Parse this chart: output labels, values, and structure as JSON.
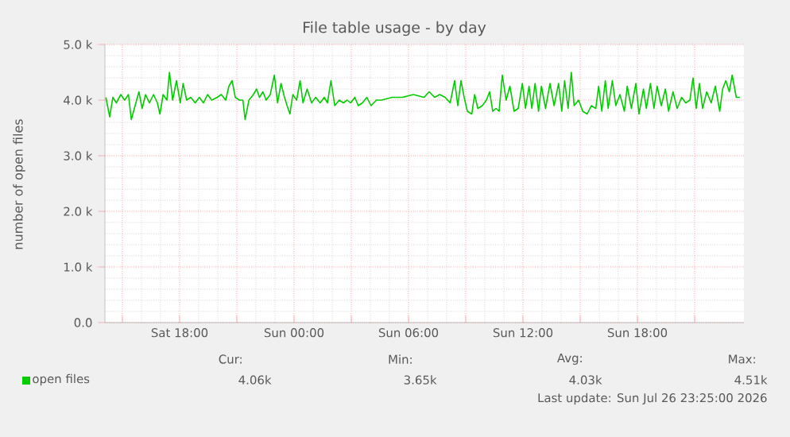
{
  "chart_data": {
    "type": "line",
    "title": "File table usage - by day",
    "ylabel": "number of open files",
    "xlim": [
      "2026-07-25T14:05",
      "2026-07-26T23:35"
    ],
    "ylim": [
      0,
      5000
    ],
    "xticks": [
      {
        "value": "2026-07-25T15:00",
        "label": null
      },
      {
        "value": "2026-07-25T18:00",
        "label": "Sat 18:00"
      },
      {
        "value": "2026-07-25T21:00",
        "label": null
      },
      {
        "value": "2026-07-26T00:00",
        "label": "Sun 00:00"
      },
      {
        "value": "2026-07-26T03:00",
        "label": null
      },
      {
        "value": "2026-07-26T06:00",
        "label": "Sun 06:00"
      },
      {
        "value": "2026-07-26T09:00",
        "label": null
      },
      {
        "value": "2026-07-26T12:00",
        "label": "Sun 12:00"
      },
      {
        "value": "2026-07-26T15:00",
        "label": null
      },
      {
        "value": "2026-07-26T18:00",
        "label": "Sun 18:00"
      },
      {
        "value": "2026-07-26T21:00",
        "label": null
      }
    ],
    "yticks": [
      {
        "value": 0,
        "label": "0.0"
      },
      {
        "value": 1000,
        "label": "1.0 k"
      },
      {
        "value": 2000,
        "label": "2.0 k"
      },
      {
        "value": 3000,
        "label": "3.0 k"
      },
      {
        "value": 4000,
        "label": "4.0 k"
      },
      {
        "value": 5000,
        "label": "5.0 k"
      }
    ],
    "grid": true,
    "legend": "bottom left",
    "marker": "none",
    "line_style": "solid",
    "annotations": [
      "Cur:",
      "4.06k",
      "Min:",
      "3.65k",
      "Avg:",
      "4.03k",
      "Max:",
      "4.51k",
      "Last update: Sun Jul 26 23:25:00 2026"
    ],
    "series": [
      {
        "name": "open files",
        "color": "#00cc00",
        "x": [
          "2026-07-25T14:08",
          "2026-07-25T14:20",
          "2026-07-25T14:30",
          "2026-07-25T14:41",
          "2026-07-25T14:55",
          "2026-07-25T15:07",
          "2026-07-25T15:19",
          "2026-07-25T15:28",
          "2026-07-25T15:40",
          "2026-07-25T15:52",
          "2026-07-25T16:02",
          "2026-07-25T16:13",
          "2026-07-25T16:25",
          "2026-07-25T16:38",
          "2026-07-25T16:50",
          "2026-07-25T16:58",
          "2026-07-25T17:08",
          "2026-07-25T17:20",
          "2026-07-25T17:28",
          "2026-07-25T17:38",
          "2026-07-25T17:50",
          "2026-07-25T18:02",
          "2026-07-25T18:11",
          "2026-07-25T18:22",
          "2026-07-25T18:35",
          "2026-07-25T18:49",
          "2026-07-25T19:02",
          "2026-07-25T19:15",
          "2026-07-25T19:28",
          "2026-07-25T19:41",
          "2026-07-25T19:58",
          "2026-07-25T20:11",
          "2026-07-25T20:25",
          "2026-07-25T20:35",
          "2026-07-25T20:45",
          "2026-07-25T20:55",
          "2026-07-25T21:08",
          "2026-07-25T21:19",
          "2026-07-25T21:26",
          "2026-07-25T21:38",
          "2026-07-25T21:52",
          "2026-07-25T22:02",
          "2026-07-25T22:11",
          "2026-07-25T22:22",
          "2026-07-25T22:32",
          "2026-07-25T22:45",
          "2026-07-25T22:58",
          "2026-07-25T23:08",
          "2026-07-25T23:19",
          "2026-07-25T23:30",
          "2026-07-25T23:38",
          "2026-07-25T23:47",
          "2026-07-25T23:56",
          "2026-07-26T00:08",
          "2026-07-26T00:19",
          "2026-07-26T00:28",
          "2026-07-26T00:41",
          "2026-07-26T00:55",
          "2026-07-26T01:08",
          "2026-07-26T01:22",
          "2026-07-26T01:35",
          "2026-07-26T01:45",
          "2026-07-26T01:56",
          "2026-07-26T02:08",
          "2026-07-26T02:22",
          "2026-07-26T02:35",
          "2026-07-26T02:47",
          "2026-07-26T02:58",
          "2026-07-26T03:11",
          "2026-07-26T03:22",
          "2026-07-26T03:35",
          "2026-07-26T03:49",
          "2026-07-26T04:02",
          "2026-07-26T04:19",
          "2026-07-26T04:35",
          "2026-07-26T05:08",
          "2026-07-26T05:41",
          "2026-07-26T06:15",
          "2026-07-26T06:49",
          "2026-07-26T07:05",
          "2026-07-26T07:22",
          "2026-07-26T07:38",
          "2026-07-26T07:55",
          "2026-07-26T08:11",
          "2026-07-26T08:25",
          "2026-07-26T08:35",
          "2026-07-26T08:45",
          "2026-07-26T08:55",
          "2026-07-26T09:05",
          "2026-07-26T09:19",
          "2026-07-26T09:28",
          "2026-07-26T09:38",
          "2026-07-26T09:52",
          "2026-07-26T10:05",
          "2026-07-26T10:15",
          "2026-07-26T10:25",
          "2026-07-26T10:35",
          "2026-07-26T10:45",
          "2026-07-26T10:55",
          "2026-07-26T11:07",
          "2026-07-26T11:19",
          "2026-07-26T11:32",
          "2026-07-26T11:45",
          "2026-07-26T11:58",
          "2026-07-26T12:08",
          "2026-07-26T12:19",
          "2026-07-26T12:28",
          "2026-07-26T12:38",
          "2026-07-26T12:49",
          "2026-07-26T12:58",
          "2026-07-26T13:11",
          "2026-07-26T13:25",
          "2026-07-26T13:38",
          "2026-07-26T13:52",
          "2026-07-26T14:02",
          "2026-07-26T14:11",
          "2026-07-26T14:22",
          "2026-07-26T14:32",
          "2026-07-26T14:41",
          "2026-07-26T14:55",
          "2026-07-26T15:08",
          "2026-07-26T15:22",
          "2026-07-26T15:35",
          "2026-07-26T15:49",
          "2026-07-26T15:58",
          "2026-07-26T16:08",
          "2026-07-26T16:19",
          "2026-07-26T16:28",
          "2026-07-26T16:41",
          "2026-07-26T16:52",
          "2026-07-26T17:05",
          "2026-07-26T17:19",
          "2026-07-26T17:28",
          "2026-07-26T17:41",
          "2026-07-26T17:55",
          "2026-07-26T18:05",
          "2026-07-26T18:19",
          "2026-07-26T18:28",
          "2026-07-26T18:41",
          "2026-07-26T18:52",
          "2026-07-26T19:02",
          "2026-07-26T19:15",
          "2026-07-26T19:28",
          "2026-07-26T19:38",
          "2026-07-26T19:52",
          "2026-07-26T20:05",
          "2026-07-26T20:19",
          "2026-07-26T20:32",
          "2026-07-26T20:45",
          "2026-07-26T20:55",
          "2026-07-26T21:05",
          "2026-07-26T21:15",
          "2026-07-26T21:25",
          "2026-07-26T21:38",
          "2026-07-26T21:52",
          "2026-07-26T22:05",
          "2026-07-26T22:19",
          "2026-07-26T22:28",
          "2026-07-26T22:38",
          "2026-07-26T22:49",
          "2026-07-26T22:58",
          "2026-07-26T23:11",
          "2026-07-26T23:22"
        ],
        "values": [
          4050,
          3700,
          4050,
          3950,
          4100,
          4000,
          4100,
          3650,
          3900,
          4150,
          3850,
          4100,
          3950,
          4100,
          3950,
          3750,
          4100,
          4000,
          4500,
          4000,
          4350,
          3950,
          4300,
          4000,
          4050,
          3950,
          4050,
          3950,
          4100,
          4000,
          4050,
          4100,
          4000,
          4250,
          4350,
          4050,
          4000,
          4000,
          3650,
          4000,
          4100,
          4200,
          4050,
          4150,
          4000,
          4100,
          4450,
          3950,
          4300,
          4050,
          3900,
          3750,
          4100,
          4000,
          4350,
          3950,
          4200,
          3950,
          4050,
          3950,
          4050,
          3950,
          4350,
          3900,
          4000,
          3950,
          4000,
          3950,
          4050,
          3900,
          3950,
          4050,
          3900,
          4000,
          4000,
          4050,
          4050,
          4100,
          4050,
          4150,
          4050,
          4100,
          4050,
          3950,
          4350,
          3900,
          4350,
          4050,
          3800,
          3750,
          4100,
          3850,
          3900,
          4000,
          4150,
          3800,
          3850,
          3800,
          4450,
          4000,
          4250,
          3800,
          3850,
          4300,
          3850,
          4250,
          3850,
          4300,
          3800,
          4250,
          3850,
          4300,
          3900,
          4300,
          3800,
          4350,
          3850,
          4500,
          3900,
          4000,
          3800,
          3750,
          3900,
          3850,
          4250,
          3800,
          4350,
          3850,
          4350,
          3900,
          4100,
          3800,
          4250,
          3850,
          4300,
          3750,
          4200,
          3850,
          4300,
          3850,
          4250,
          3900,
          4200,
          3800,
          4150,
          3850,
          4050,
          3950,
          4000,
          4400,
          3850,
          4300,
          3850,
          4150,
          3950,
          4250,
          3800,
          4200,
          4350,
          4150,
          4450,
          4050,
          4050
        ]
      }
    ]
  }
}
